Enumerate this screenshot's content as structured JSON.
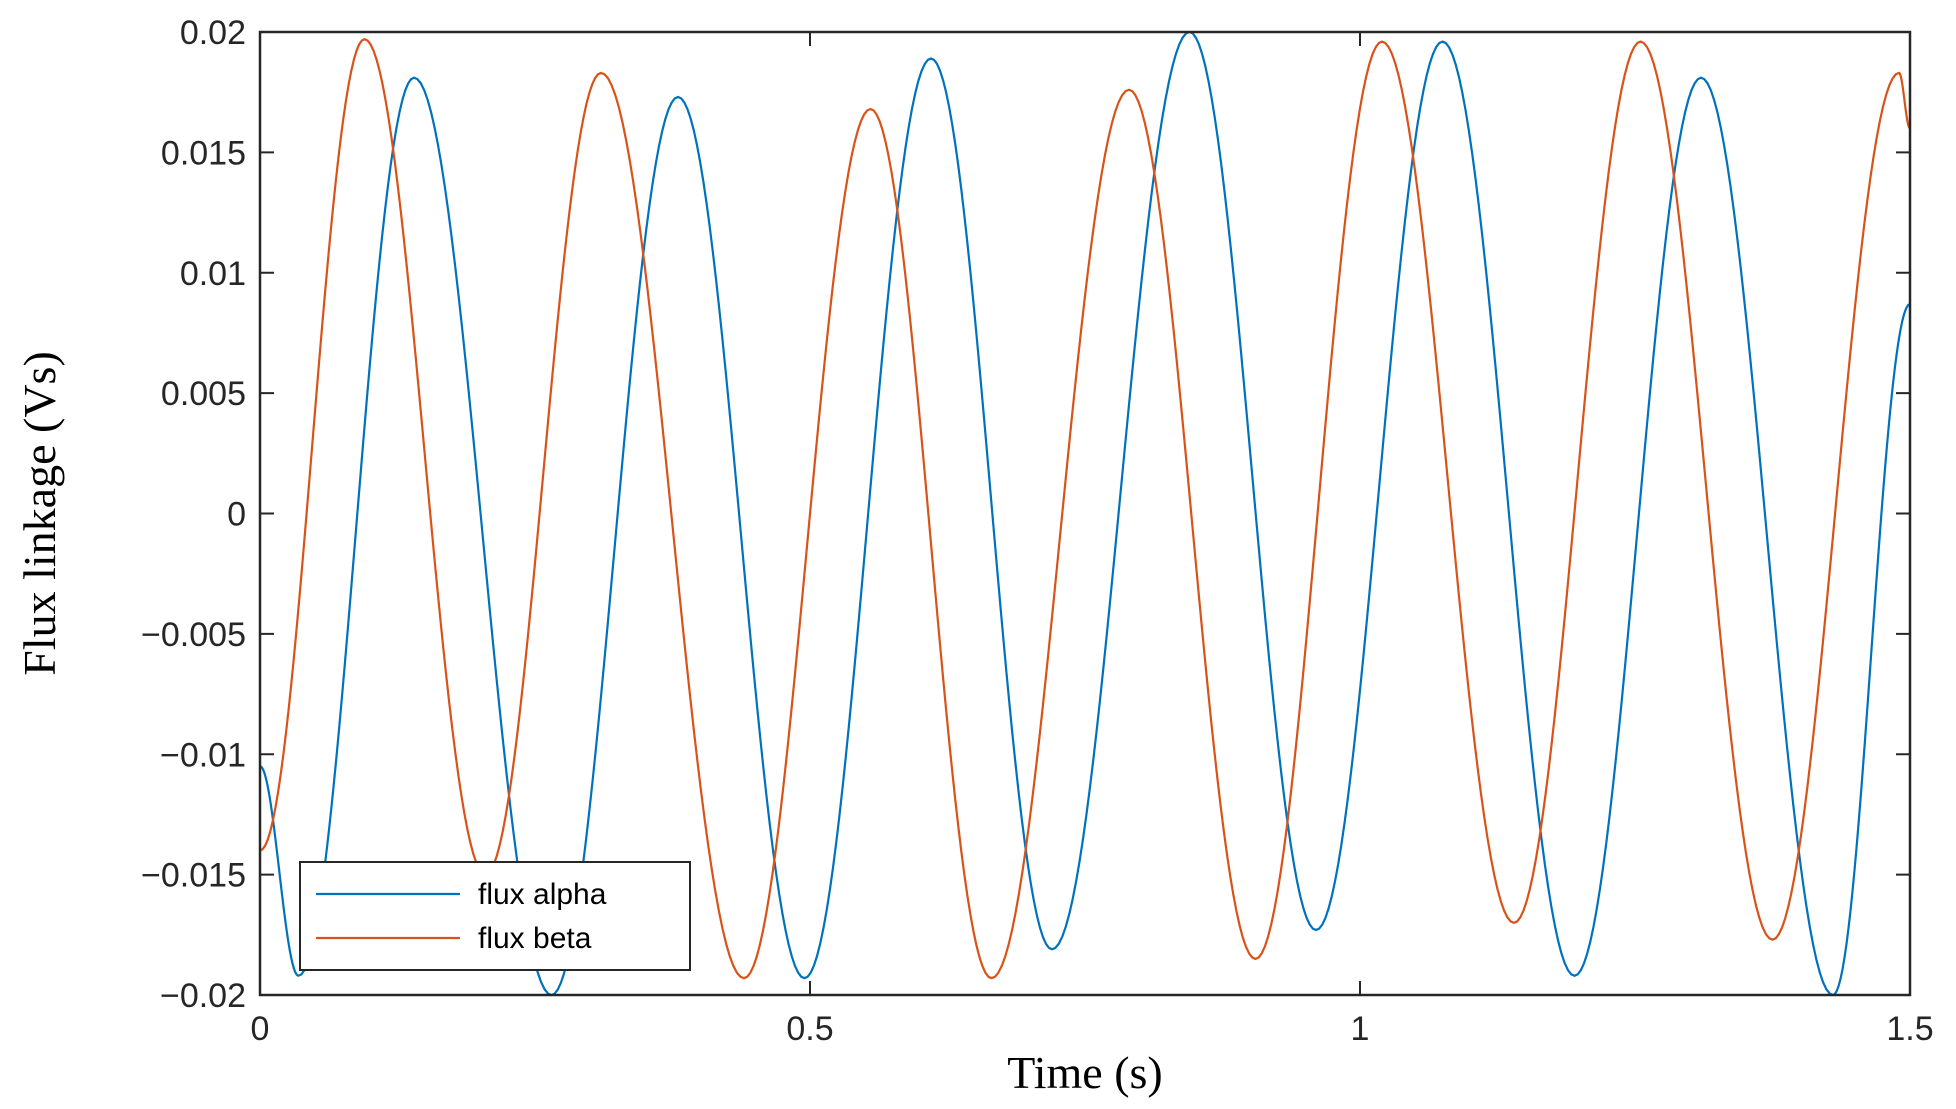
{
  "chart_data": {
    "type": "line",
    "title": "",
    "xlabel": "Time (s)",
    "ylabel": "Flux linkage (Vs)",
    "xlim": [
      0,
      1.5
    ],
    "ylim": [
      -0.02,
      0.02
    ],
    "xticks": [
      0,
      0.5,
      1,
      1.5
    ],
    "xtick_labels": [
      "0",
      "0.5",
      "1",
      "1.5"
    ],
    "yticks": [
      0.02,
      0.015,
      0.01,
      0.005,
      0,
      -0.005,
      -0.01,
      -0.015,
      -0.02
    ],
    "ytick_labels": [
      "0.02",
      "0.015",
      "0.01",
      "0.005",
      "0",
      "−0.005",
      "−0.01",
      "−0.015",
      "−0.02"
    ],
    "grid": false,
    "legend_position": "bottom-left",
    "series": [
      {
        "name": "flux alpha",
        "color": "#0072BD",
        "x": [
          0,
          0.035,
          0.14,
          0.265,
          0.38,
          0.495,
          0.61,
          0.72,
          0.845,
          0.96,
          1.075,
          1.195,
          1.31,
          1.43,
          1.5
        ],
        "y": [
          -0.0105,
          -0.0192,
          0.0181,
          -0.02,
          0.0173,
          -0.0193,
          0.0189,
          -0.0181,
          0.02,
          -0.0173,
          0.0196,
          -0.0192,
          0.0181,
          -0.02,
          0.0087
        ]
      },
      {
        "name": "flux beta",
        "color": "#D95319",
        "x": [
          0,
          0.095,
          0.205,
          0.31,
          0.44,
          0.555,
          0.665,
          0.79,
          0.905,
          1.02,
          1.14,
          1.255,
          1.375,
          1.49,
          1.5
        ],
        "y": [
          -0.014,
          0.0197,
          -0.015,
          0.0183,
          -0.0193,
          0.0168,
          -0.0193,
          0.0176,
          -0.0185,
          0.0196,
          -0.017,
          0.0196,
          -0.0177,
          0.0183,
          0.016
        ]
      }
    ]
  }
}
